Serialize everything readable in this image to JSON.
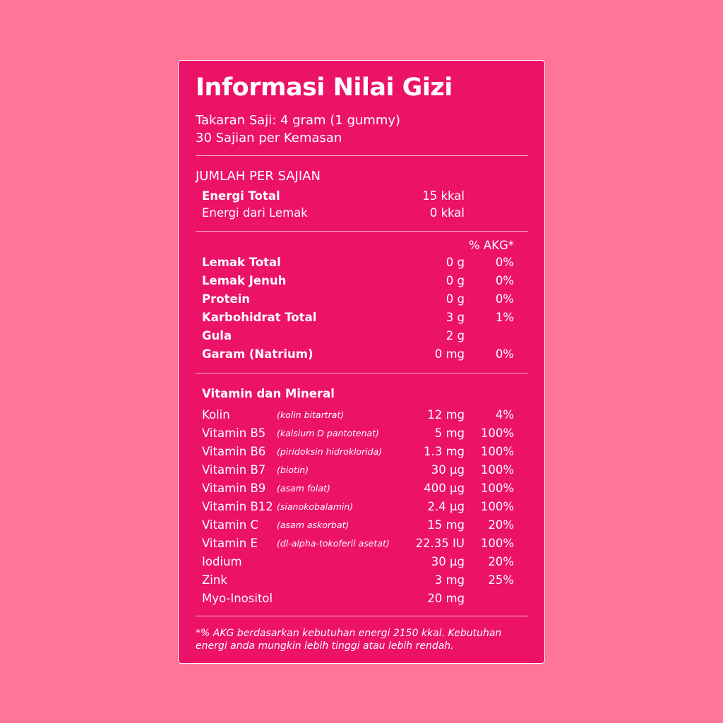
{
  "colors": {
    "background": "#FF7598",
    "panel": "#EC1268",
    "text": "#FFFFFF"
  },
  "title": "Informasi Nilai Gizi",
  "serving_size": "Takaran Saji: 4 gram (1 gummy)",
  "servings_per_pack": "30 Sajian per Kemasan",
  "amount_header": "JUMLAH PER SAJIAN",
  "energy": [
    {
      "label": "Energi Total",
      "amount": "15 kkal"
    },
    {
      "label": "Energi dari Lemak",
      "amount": "0 kkal"
    }
  ],
  "akg_header": "% AKG*",
  "nutrients": [
    {
      "label": "Lemak Total",
      "amount": "0 g",
      "akg": "0%"
    },
    {
      "label": "Lemak Jenuh",
      "amount": "0 g",
      "akg": "0%"
    },
    {
      "label": "Protein",
      "amount": "0 g",
      "akg": "0%"
    },
    {
      "label": "Karbohidrat Total",
      "amount": "3 g",
      "akg": "1%"
    },
    {
      "label": "Gula",
      "amount": "2 g",
      "akg": ""
    },
    {
      "label": "Garam (Natrium)",
      "amount": "0 mg",
      "akg": "0%"
    }
  ],
  "vitamin_header": "Vitamin dan Mineral",
  "vitamins": [
    {
      "label": "Kolin",
      "form": "(kolin bitartrat)",
      "amount": "12 mg",
      "akg": "4%"
    },
    {
      "label": "Vitamin B5",
      "form": "(kalsium D pantotenat)",
      "amount": "5 mg",
      "akg": "100%"
    },
    {
      "label": "Vitamin B6",
      "form": "(piridoksin hidroklorida)",
      "amount": "1.3 mg",
      "akg": "100%"
    },
    {
      "label": "Vitamin B7",
      "form": "(biotin)",
      "amount": "30 µg",
      "akg": "100%"
    },
    {
      "label": "Vitamin B9",
      "form": "(asam folat)",
      "amount": "400 µg",
      "akg": "100%"
    },
    {
      "label": "Vitamin B12",
      "form": "(sianokobalamin)",
      "amount": "2.4 µg",
      "akg": "100%"
    },
    {
      "label": "Vitamin C",
      "form": "(asam askorbat)",
      "amount": "15 mg",
      "akg": "20%"
    },
    {
      "label": "Vitamin E",
      "form": "(dl-alpha-tokoferil asetat)",
      "amount": "22.35 IU",
      "akg": "100%"
    },
    {
      "label": "Iodium",
      "form": "",
      "amount": "30 µg",
      "akg": "20%"
    },
    {
      "label": "Zink",
      "form": "",
      "amount": "3 mg",
      "akg": "25%"
    },
    {
      "label": "Myo-Inositol",
      "form": "",
      "amount": "20 mg",
      "akg": ""
    }
  ],
  "footnote_line1": "*% AKG berdasarkan kebutuhan energi 2150 kkal. Kebutuhan",
  "footnote_line2": "energi anda mungkin lebih tinggi atau lebih rendah."
}
